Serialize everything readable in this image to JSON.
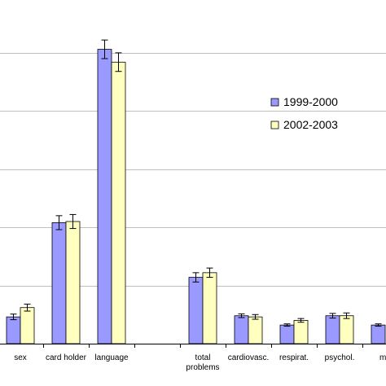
{
  "chart_data": {
    "type": "bar",
    "categories": [
      "sex",
      "card holder",
      "language",
      "",
      "total problems",
      "cardiovasc.",
      "respirat.",
      "psychol.",
      "me"
    ],
    "category_lines": [
      [
        "sex"
      ],
      [
        "card holder"
      ],
      [
        "language"
      ],
      [],
      [
        "total",
        "problems"
      ],
      [
        "cardiovasc."
      ],
      [
        "respirat."
      ],
      [
        "psychol."
      ],
      [
        "me"
      ]
    ],
    "series": [
      {
        "name": "1999-2000",
        "values": [
          1.15,
          5.2,
          12.65,
          null,
          2.85,
          1.2,
          0.8,
          1.2,
          0.8
        ],
        "errors": [
          0.12,
          0.3,
          0.4,
          null,
          0.2,
          0.08,
          0.05,
          0.1,
          0.05
        ]
      },
      {
        "name": "2002-2003",
        "values": [
          1.55,
          5.25,
          12.1,
          null,
          3.05,
          1.15,
          1.0,
          1.2,
          null
        ],
        "errors": [
          0.15,
          0.3,
          0.4,
          null,
          0.2,
          0.1,
          0.08,
          0.12,
          null
        ]
      }
    ],
    "colors": {
      "series1_fill": "#9999ff",
      "series2_fill": "#ffffc0",
      "axis": "#000000",
      "grid": "#c0c0c0",
      "error": "#000000"
    },
    "ylim": [
      0,
      14
    ],
    "grid": true,
    "legend_position": "right"
  }
}
